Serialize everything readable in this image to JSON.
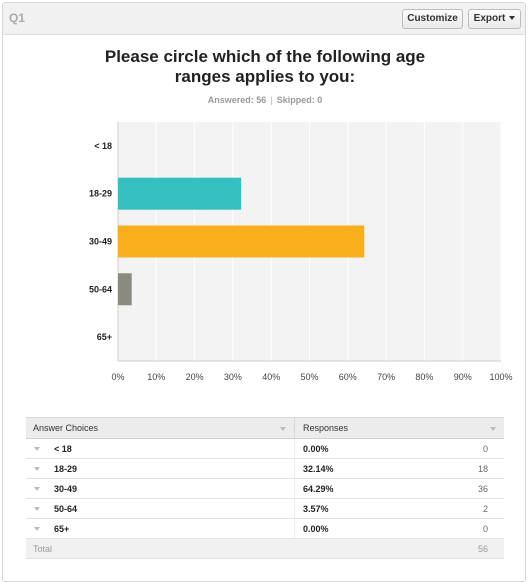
{
  "header": {
    "question_label": "Q1",
    "customize_label": "Customize",
    "export_label": "Export"
  },
  "question": {
    "title_line1": "Please circle which of the following age",
    "title_line2": "ranges applies to you:",
    "answered": "Answered: 56",
    "skipped": "Skipped: 0"
  },
  "chart_data": {
    "type": "bar",
    "orientation": "horizontal",
    "categories": [
      "< 18",
      "18-29",
      "30-49",
      "50-64",
      "65+"
    ],
    "values": [
      0.0,
      32.14,
      64.29,
      3.57,
      0.0
    ],
    "xlim": [
      0,
      100
    ],
    "xticks": [
      "0%",
      "10%",
      "20%",
      "30%",
      "40%",
      "50%",
      "60%",
      "70%",
      "80%",
      "90%",
      "100%"
    ],
    "colors": [
      "#35bfbf",
      "#35bfbf",
      "#f9af1c",
      "#8a8a7e",
      "#888888"
    ],
    "grid": true,
    "title": "Please circle which of the following age ranges applies to you:"
  },
  "table": {
    "col_choices": "Answer Choices",
    "col_responses": "Responses",
    "rows": [
      {
        "choice": "< 18",
        "percent": "0.00%",
        "count": "0"
      },
      {
        "choice": "18-29",
        "percent": "32.14%",
        "count": "18"
      },
      {
        "choice": "30-49",
        "percent": "64.29%",
        "count": "36"
      },
      {
        "choice": "50-64",
        "percent": "3.57%",
        "count": "2"
      },
      {
        "choice": "65+",
        "percent": "0.00%",
        "count": "0"
      }
    ],
    "total_label": "Total",
    "total_count": "56"
  }
}
